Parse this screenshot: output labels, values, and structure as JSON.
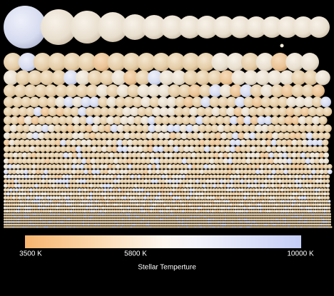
{
  "colorbar": {
    "title": "Stellar Temperture",
    "ticks": [
      "3500 K",
      "5800 K",
      "10000 K"
    ]
  }
}
